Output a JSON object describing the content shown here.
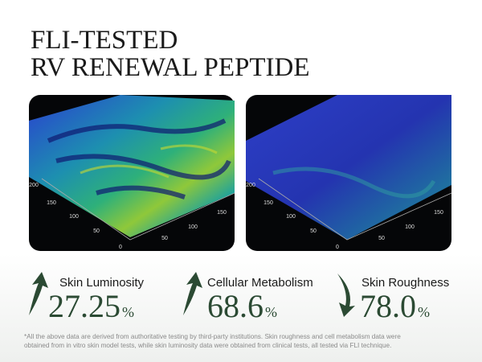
{
  "header": {
    "title_lines": [
      "FLI-TESTED",
      "RV RENEWAL PEPTIDE"
    ]
  },
  "plots": [
    {
      "y_ticks": [
        "200",
        "150",
        "100",
        "50",
        "0"
      ],
      "x_ticks": [
        "50",
        "100",
        "150"
      ]
    },
    {
      "y_ticks": [
        "200",
        "150",
        "100",
        "50",
        "0"
      ],
      "x_ticks": [
        "50",
        "100",
        "150"
      ]
    }
  ],
  "stats": [
    {
      "label": "Skin Luminosity",
      "value": "27.25",
      "unit": "%"
    },
    {
      "label": "Cellular Metabolism",
      "value": "68.6",
      "unit": "%"
    },
    {
      "label": "Skin Roughness",
      "value": "78.0",
      "unit": "%"
    }
  ],
  "footnote": [
    "*All the above data are derived from authoritative testing by third-party institutions. Skin roughness and cell metabolism data were",
    "obtained from in vitro skin model tests, while skin luminosity data were obtained from clinical tests, all tested via FLI technique."
  ]
}
